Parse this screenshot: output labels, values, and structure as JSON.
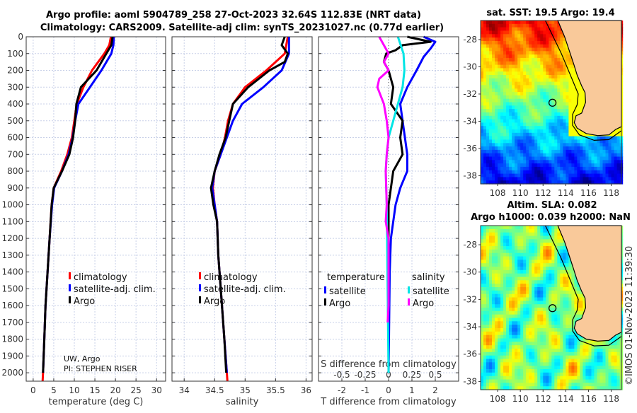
{
  "title_line1": "Argo profile: aoml 5904789_258 27-Oct-2023 32.64S 112.83E (NRT data)",
  "title_line2": "Climatology: CARS2009. Satellite-adj clim: synTS_20231027.nc (0.77d earlier)",
  "credit_line1": "UW, Argo",
  "credit_line2": "PI: STEPHEN RISER",
  "colors": {
    "climatology": "#ff0000",
    "satellite": "#0000ff",
    "argo": "#000000",
    "sal_satellite": "#00e5e5",
    "sal_argo": "#ff00ff",
    "land": "#f9c99a"
  },
  "chart_data": [
    {
      "type": "line",
      "name": "temperature-profile",
      "xlabel": "temperature (deg C)",
      "ylabel": "",
      "xlim": [
        -1.7,
        32.2
      ],
      "ylim": [
        2050,
        0
      ],
      "xticks": [
        0,
        5,
        10,
        15,
        20,
        25,
        30
      ],
      "yticks": [
        0,
        100,
        200,
        300,
        400,
        500,
        600,
        700,
        800,
        900,
        1000,
        1100,
        1200,
        1300,
        1400,
        1500,
        1600,
        1700,
        1800,
        1900,
        2000
      ],
      "legend": [
        "climatology",
        "satellite-adj. clim.",
        "Argo"
      ],
      "series": [
        {
          "name": "climatology",
          "color": "#ff0000",
          "points": [
            [
              0,
              18.9
            ],
            [
              50,
              18.5
            ],
            [
              100,
              17.3
            ],
            [
              200,
              14.3
            ],
            [
              300,
              12.2
            ],
            [
              400,
              10.6
            ],
            [
              500,
              10.0
            ],
            [
              600,
              9.4
            ],
            [
              700,
              8.3
            ],
            [
              800,
              6.8
            ],
            [
              900,
              5.0
            ],
            [
              1000,
              4.5
            ],
            [
              1200,
              4.0
            ],
            [
              1400,
              3.5
            ],
            [
              1600,
              3.0
            ],
            [
              1800,
              2.7
            ],
            [
              2000,
              2.4
            ],
            [
              2050,
              2.3
            ]
          ]
        },
        {
          "name": "satellite-adj. clim.",
          "color": "#0000ff",
          "points": [
            [
              0,
              19.6
            ],
            [
              50,
              19.5
            ],
            [
              100,
              19.0
            ],
            [
              200,
              16.6
            ],
            [
              300,
              13.8
            ],
            [
              400,
              11.0
            ],
            [
              500,
              10.2
            ],
            [
              600,
              9.6
            ],
            [
              700,
              8.6
            ],
            [
              800,
              7.0
            ],
            [
              900,
              5.1
            ],
            [
              1000,
              4.6
            ],
            [
              1200,
              4.0
            ],
            [
              1400,
              3.5
            ],
            [
              1600,
              3.0
            ],
            [
              1800,
              2.7
            ],
            [
              2000,
              2.4
            ]
          ]
        },
        {
          "name": "Argo",
          "color": "#000000",
          "points": [
            [
              0,
              19.3
            ],
            [
              50,
              19.0
            ],
            [
              100,
              17.8
            ],
            [
              200,
              15.4
            ],
            [
              300,
              11.6
            ],
            [
              400,
              10.5
            ],
            [
              500,
              10.2
            ],
            [
              600,
              9.7
            ],
            [
              700,
              8.8
            ],
            [
              800,
              7.0
            ],
            [
              900,
              5.0
            ],
            [
              1000,
              4.5
            ],
            [
              1200,
              4.0
            ],
            [
              1400,
              3.5
            ],
            [
              1600,
              3.0
            ],
            [
              1800,
              2.7
            ],
            [
              2000,
              2.4
            ]
          ]
        }
      ]
    },
    {
      "type": "line",
      "name": "salinity-profile",
      "xlabel": "salinity",
      "xlim": [
        33.8,
        36.1
      ],
      "ylim": [
        2050,
        0
      ],
      "xticks": [
        "34",
        "34.5",
        "35",
        "35.5",
        "36"
      ],
      "legend": [
        "climatology",
        "satellite-adj. clim.",
        "Argo"
      ],
      "series": [
        {
          "name": "climatology",
          "color": "#ff0000",
          "points": [
            [
              0,
              35.7
            ],
            [
              100,
              35.65
            ],
            [
              200,
              35.35
            ],
            [
              300,
              35.0
            ],
            [
              400,
              34.8
            ],
            [
              500,
              34.72
            ],
            [
              600,
              34.67
            ],
            [
              700,
              34.6
            ],
            [
              800,
              34.5
            ],
            [
              900,
              34.47
            ],
            [
              1000,
              34.5
            ],
            [
              1100,
              34.54
            ],
            [
              1300,
              34.56
            ],
            [
              1500,
              34.6
            ],
            [
              1800,
              34.66
            ],
            [
              2000,
              34.7
            ],
            [
              2050,
              34.71
            ]
          ]
        },
        {
          "name": "satellite-adj. clim.",
          "color": "#0000ff",
          "points": [
            [
              0,
              35.72
            ],
            [
              100,
              35.72
            ],
            [
              200,
              35.6
            ],
            [
              300,
              35.3
            ],
            [
              400,
              34.95
            ],
            [
              500,
              34.8
            ],
            [
              600,
              34.7
            ],
            [
              700,
              34.6
            ],
            [
              800,
              34.5
            ],
            [
              900,
              34.46
            ],
            [
              1000,
              34.5
            ],
            [
              1100,
              34.54
            ],
            [
              1300,
              34.56
            ],
            [
              1500,
              34.6
            ],
            [
              1800,
              34.66
            ],
            [
              2000,
              34.7
            ]
          ]
        },
        {
          "name": "Argo",
          "color": "#000000",
          "points": [
            [
              0,
              35.65
            ],
            [
              50,
              35.6
            ],
            [
              100,
              35.7
            ],
            [
              150,
              35.65
            ],
            [
              200,
              35.4
            ],
            [
              300,
              35.05
            ],
            [
              400,
              34.8
            ],
            [
              500,
              34.74
            ],
            [
              600,
              34.68
            ],
            [
              700,
              34.58
            ],
            [
              800,
              34.5
            ],
            [
              900,
              34.44
            ],
            [
              1000,
              34.48
            ],
            [
              1100,
              34.54
            ],
            [
              1300,
              34.56
            ],
            [
              1500,
              34.6
            ],
            [
              1800,
              34.66
            ],
            [
              2000,
              34.69
            ]
          ]
        }
      ]
    },
    {
      "type": "line",
      "name": "difference-profile",
      "xlabel": "T difference from climatology",
      "xlabel_top": "S difference from climatology",
      "xlim": [
        -3,
        3
      ],
      "xlim_top": [
        -0.75,
        0.75
      ],
      "ylim": [
        2050,
        0
      ],
      "xticks": [
        "-2",
        "-1",
        "0",
        "1",
        "2"
      ],
      "xticks_top": [
        "-0.5",
        "-0.25",
        "0",
        "0.25",
        "0.5"
      ],
      "legend_left_title": "temperature",
      "legend_right_title": "salinity",
      "legend": [
        "satellite",
        "Argo",
        "satellite",
        "Argo"
      ],
      "series": [
        {
          "name": "temperature satellite",
          "axis": "T",
          "color": "#0000ff",
          "points": [
            [
              0,
              1.5
            ],
            [
              30,
              2.0
            ],
            [
              70,
              1.8
            ],
            [
              120,
              1.5
            ],
            [
              200,
              1.2
            ],
            [
              300,
              0.8
            ],
            [
              400,
              0.5
            ],
            [
              500,
              0.6
            ],
            [
              600,
              0.7
            ],
            [
              700,
              0.8
            ],
            [
              800,
              0.8
            ],
            [
              900,
              0.5
            ],
            [
              1000,
              0.3
            ],
            [
              1200,
              0.1
            ],
            [
              1400,
              0.05
            ],
            [
              2000,
              0.0
            ]
          ]
        },
        {
          "name": "temperature Argo",
          "axis": "T",
          "color": "#000000",
          "points": [
            [
              0,
              0.8
            ],
            [
              30,
              1.8
            ],
            [
              50,
              0.6
            ],
            [
              80,
              0.3
            ],
            [
              100,
              -0.1
            ],
            [
              150,
              -0.2
            ],
            [
              200,
              0.0
            ],
            [
              300,
              0.2
            ],
            [
              400,
              0.1
            ],
            [
              500,
              0.6
            ],
            [
              600,
              0.5
            ],
            [
              700,
              0.6
            ],
            [
              800,
              0.2
            ],
            [
              900,
              0.1
            ],
            [
              1000,
              0.0
            ],
            [
              1500,
              0.0
            ]
          ]
        },
        {
          "name": "salinity satellite",
          "axis": "S",
          "color": "#00e5e5",
          "points": [
            [
              0,
              0.1
            ],
            [
              100,
              0.16
            ],
            [
              200,
              0.17
            ],
            [
              300,
              0.15
            ],
            [
              400,
              0.1
            ],
            [
              500,
              0.05
            ],
            [
              600,
              0.0
            ],
            [
              700,
              -0.02
            ],
            [
              800,
              -0.03
            ],
            [
              1000,
              -0.02
            ],
            [
              1500,
              -0.01
            ],
            [
              2000,
              0.0
            ]
          ]
        },
        {
          "name": "salinity Argo",
          "axis": "S",
          "color": "#ff00ff",
          "points": [
            [
              0,
              -0.1
            ],
            [
              50,
              -0.05
            ],
            [
              100,
              0.0
            ],
            [
              150,
              -0.05
            ],
            [
              200,
              0.0
            ],
            [
              250,
              -0.1
            ],
            [
              300,
              -0.12
            ],
            [
              400,
              -0.05
            ],
            [
              500,
              -0.02
            ],
            [
              600,
              0.0
            ],
            [
              700,
              -0.02
            ],
            [
              800,
              -0.03
            ],
            [
              1000,
              -0.02
            ],
            [
              1100,
              -0.03
            ],
            [
              1200,
              0.0
            ],
            [
              1600,
              0.0
            ],
            [
              1700,
              -0.01
            ]
          ]
        }
      ]
    },
    {
      "type": "heatmap",
      "name": "sst-map",
      "title": "sat. SST: 19.5 Argo: 19.4",
      "xlim": [
        106.5,
        118.9
      ],
      "ylim": [
        -38.6,
        -26.6
      ],
      "xticks": [
        "108",
        "110",
        "112",
        "114",
        "116",
        "118"
      ],
      "yticks": [
        "-28",
        "-30",
        "-32",
        "-34",
        "-36",
        "-38"
      ],
      "marker": [
        112.83,
        -32.64
      ]
    },
    {
      "type": "heatmap",
      "name": "sla-map",
      "title_line1": "Altim. SLA: 0.082",
      "title_line2": "Argo h1000: 0.039 h2000: NaN",
      "xlim": [
        106.5,
        118.9
      ],
      "ylim": [
        -38.6,
        -26.6
      ],
      "xticks": [
        "108",
        "110",
        "112",
        "114",
        "116",
        "118"
      ],
      "yticks": [
        "-28",
        "-30",
        "-32",
        "-34",
        "-36",
        "-38"
      ],
      "marker": [
        112.83,
        -32.64
      ]
    }
  ],
  "watermark": "©IMOS 01-Nov-2023 11:39:30"
}
